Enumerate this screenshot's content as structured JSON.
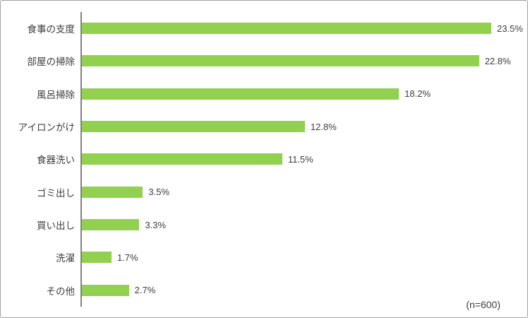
{
  "chart_data": {
    "type": "bar",
    "orientation": "horizontal",
    "title": "",
    "xlabel": "",
    "ylabel": "",
    "grid": false,
    "xlim": [
      0,
      25
    ],
    "categories": [
      "食事の支度",
      "部屋の掃除",
      "風呂掃除",
      "アイロンがけ",
      "食器洗い",
      "ゴミ出し",
      "買い出し",
      "洗濯",
      "その他"
    ],
    "values": [
      23.5,
      22.8,
      18.2,
      12.8,
      11.5,
      3.5,
      3.3,
      1.7,
      2.7
    ],
    "value_labels": [
      "23.5%",
      "22.8%",
      "18.2%",
      "12.8%",
      "11.5%",
      "3.5%",
      "3.3%",
      "1.7%",
      "2.7%"
    ],
    "annotation": "(n=600)",
    "legend": null
  },
  "colors": {
    "bar": "#92d050",
    "axis": "#808080",
    "text": "#3d3d3d",
    "frame_border": "#a3a3a3"
  }
}
